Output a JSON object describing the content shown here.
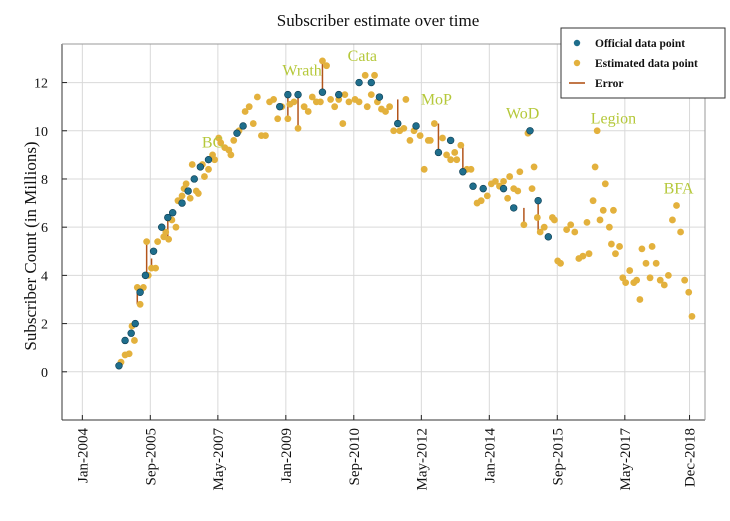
{
  "chart_data": {
    "type": "scatter",
    "title": "Subscriber estimate over time",
    "xlabel": "",
    "ylabel": "Subscriber Count (in Millions)",
    "xlim": [
      2003.5,
      2019.3
    ],
    "ylim": [
      -2,
      13.6
    ],
    "y_ticks": [
      0,
      2,
      4,
      6,
      8,
      10,
      12
    ],
    "x_ticks": [
      {
        "label": "Jan-2004",
        "value": 2004.0
      },
      {
        "label": "Sep-2005",
        "value": 2005.67
      },
      {
        "label": "May-2007",
        "value": 2007.33
      },
      {
        "label": "Jan-2009",
        "value": 2009.0
      },
      {
        "label": "Sep-2010",
        "value": 2010.67
      },
      {
        "label": "May-2012",
        "value": 2012.33
      },
      {
        "label": "Jan-2014",
        "value": 2014.0
      },
      {
        "label": "Sep-2015",
        "value": 2015.67
      },
      {
        "label": "May-2017",
        "value": 2017.33
      },
      {
        "label": "Dec-2018",
        "value": 2018.92
      }
    ],
    "grid": true,
    "legend": {
      "position": "top-right",
      "entries": [
        {
          "label": "Official data point",
          "kind": "marker",
          "color": "#1f6e8c"
        },
        {
          "label": "Estimated data point",
          "kind": "marker",
          "color": "#e3b13d"
        },
        {
          "label": "Error",
          "kind": "line",
          "color": "#b3551b"
        }
      ]
    },
    "annotations": [
      {
        "text": "BC",
        "x": 2007.2,
        "y": 9.3
      },
      {
        "text": "Wrath",
        "x": 2009.4,
        "y": 12.3
      },
      {
        "text": "Cata",
        "x": 2010.88,
        "y": 12.9
      },
      {
        "text": "MoP",
        "x": 2012.7,
        "y": 11.1
      },
      {
        "text": "WoD",
        "x": 2014.82,
        "y": 10.5
      },
      {
        "text": "Legion",
        "x": 2017.05,
        "y": 10.3
      },
      {
        "text": "BFA",
        "x": 2018.65,
        "y": 7.4
      }
    ],
    "series": [
      {
        "name": "Official data point",
        "color": "#1f6e8c",
        "points": [
          [
            2004.9,
            0.25
          ],
          [
            2005.05,
            1.3
          ],
          [
            2005.2,
            1.6
          ],
          [
            2005.3,
            2.0
          ],
          [
            2005.42,
            3.3
          ],
          [
            2005.55,
            4.0
          ],
          [
            2005.75,
            5.0
          ],
          [
            2005.95,
            6.0
          ],
          [
            2006.1,
            6.4
          ],
          [
            2006.22,
            6.6
          ],
          [
            2006.45,
            7.0
          ],
          [
            2006.6,
            7.5
          ],
          [
            2006.75,
            8.0
          ],
          [
            2006.9,
            8.5
          ],
          [
            2007.1,
            8.8
          ],
          [
            2007.8,
            9.9
          ],
          [
            2007.95,
            10.2
          ],
          [
            2008.85,
            11.0
          ],
          [
            2009.05,
            11.5
          ],
          [
            2009.3,
            11.5
          ],
          [
            2009.9,
            11.6
          ],
          [
            2010.3,
            11.5
          ],
          [
            2010.8,
            12.0
          ],
          [
            2011.1,
            12.0
          ],
          [
            2011.3,
            11.4
          ],
          [
            2011.75,
            10.3
          ],
          [
            2012.2,
            10.2
          ],
          [
            2012.75,
            9.1
          ],
          [
            2013.05,
            9.6
          ],
          [
            2013.35,
            8.3
          ],
          [
            2013.6,
            7.7
          ],
          [
            2013.85,
            7.6
          ],
          [
            2014.35,
            7.6
          ],
          [
            2014.6,
            6.8
          ],
          [
            2015.0,
            10.0
          ],
          [
            2015.2,
            7.1
          ],
          [
            2015.45,
            5.6
          ]
        ]
      },
      {
        "name": "Estimated data point",
        "color": "#e3b13d",
        "points": [
          [
            2004.95,
            0.4
          ],
          [
            2005.05,
            0.7
          ],
          [
            2005.15,
            0.75
          ],
          [
            2005.22,
            1.9
          ],
          [
            2005.28,
            1.3
          ],
          [
            2005.35,
            3.5
          ],
          [
            2005.42,
            2.8
          ],
          [
            2005.5,
            3.5
          ],
          [
            2005.58,
            5.4
          ],
          [
            2005.62,
            4.0
          ],
          [
            2005.7,
            4.3
          ],
          [
            2005.8,
            4.3
          ],
          [
            2005.85,
            5.4
          ],
          [
            2006.0,
            5.6
          ],
          [
            2006.05,
            5.8
          ],
          [
            2006.12,
            5.5
          ],
          [
            2006.2,
            6.3
          ],
          [
            2006.3,
            6.0
          ],
          [
            2006.35,
            7.1
          ],
          [
            2006.45,
            7.3
          ],
          [
            2006.5,
            7.6
          ],
          [
            2006.55,
            7.8
          ],
          [
            2006.65,
            7.2
          ],
          [
            2006.7,
            8.6
          ],
          [
            2006.8,
            7.5
          ],
          [
            2006.85,
            7.4
          ],
          [
            2006.95,
            8.6
          ],
          [
            2007.0,
            8.1
          ],
          [
            2007.1,
            8.4
          ],
          [
            2007.2,
            9.0
          ],
          [
            2007.25,
            8.8
          ],
          [
            2007.35,
            9.7
          ],
          [
            2007.4,
            9.5
          ],
          [
            2007.5,
            9.3
          ],
          [
            2007.6,
            9.2
          ],
          [
            2007.65,
            9.0
          ],
          [
            2007.72,
            9.6
          ],
          [
            2007.85,
            10.0
          ],
          [
            2008.0,
            10.8
          ],
          [
            2008.1,
            11.0
          ],
          [
            2008.2,
            10.3
          ],
          [
            2008.3,
            11.4
          ],
          [
            2008.4,
            9.8
          ],
          [
            2008.5,
            9.8
          ],
          [
            2008.6,
            11.2
          ],
          [
            2008.7,
            11.3
          ],
          [
            2008.8,
            10.5
          ],
          [
            2008.9,
            11.0
          ],
          [
            2009.05,
            10.5
          ],
          [
            2009.1,
            11.1
          ],
          [
            2009.2,
            11.2
          ],
          [
            2009.3,
            10.1
          ],
          [
            2009.45,
            11.0
          ],
          [
            2009.55,
            10.8
          ],
          [
            2009.65,
            11.4
          ],
          [
            2009.75,
            11.2
          ],
          [
            2009.85,
            11.2
          ],
          [
            2009.9,
            12.9
          ],
          [
            2010.0,
            12.7
          ],
          [
            2010.1,
            11.3
          ],
          [
            2010.2,
            11.0
          ],
          [
            2010.3,
            11.3
          ],
          [
            2010.4,
            10.3
          ],
          [
            2010.45,
            11.5
          ],
          [
            2010.55,
            11.2
          ],
          [
            2010.7,
            11.3
          ],
          [
            2010.8,
            11.2
          ],
          [
            2010.95,
            12.3
          ],
          [
            2011.0,
            11.0
          ],
          [
            2011.1,
            11.5
          ],
          [
            2011.18,
            12.3
          ],
          [
            2011.25,
            11.2
          ],
          [
            2011.35,
            10.9
          ],
          [
            2011.45,
            10.8
          ],
          [
            2011.55,
            11.0
          ],
          [
            2011.65,
            10.0
          ],
          [
            2011.8,
            10.0
          ],
          [
            2011.9,
            10.1
          ],
          [
            2011.95,
            11.3
          ],
          [
            2012.05,
            9.6
          ],
          [
            2012.15,
            10.0
          ],
          [
            2012.3,
            9.8
          ],
          [
            2012.4,
            8.4
          ],
          [
            2012.5,
            9.6
          ],
          [
            2012.55,
            9.6
          ],
          [
            2012.65,
            10.3
          ],
          [
            2012.85,
            9.7
          ],
          [
            2012.95,
            9.0
          ],
          [
            2013.05,
            8.8
          ],
          [
            2013.15,
            9.1
          ],
          [
            2013.2,
            8.8
          ],
          [
            2013.3,
            9.4
          ],
          [
            2013.45,
            8.4
          ],
          [
            2013.55,
            8.4
          ],
          [
            2013.7,
            7.0
          ],
          [
            2013.8,
            7.1
          ],
          [
            2013.95,
            7.3
          ],
          [
            2014.05,
            7.8
          ],
          [
            2014.15,
            7.9
          ],
          [
            2014.25,
            7.7
          ],
          [
            2014.35,
            7.9
          ],
          [
            2014.45,
            7.2
          ],
          [
            2014.5,
            8.1
          ],
          [
            2014.6,
            7.6
          ],
          [
            2014.7,
            7.5
          ],
          [
            2014.75,
            8.3
          ],
          [
            2014.85,
            6.1
          ],
          [
            2014.95,
            9.9
          ],
          [
            2015.05,
            7.6
          ],
          [
            2015.1,
            8.5
          ],
          [
            2015.18,
            6.4
          ],
          [
            2015.25,
            5.8
          ],
          [
            2015.35,
            6.0
          ],
          [
            2015.55,
            6.4
          ],
          [
            2015.6,
            6.3
          ],
          [
            2015.68,
            4.6
          ],
          [
            2015.75,
            4.5
          ],
          [
            2015.9,
            5.9
          ],
          [
            2016.0,
            6.1
          ],
          [
            2016.1,
            5.8
          ],
          [
            2016.2,
            4.7
          ],
          [
            2016.3,
            4.8
          ],
          [
            2016.4,
            6.2
          ],
          [
            2016.45,
            4.9
          ],
          [
            2016.55,
            7.1
          ],
          [
            2016.6,
            8.5
          ],
          [
            2016.65,
            10.0
          ],
          [
            2016.72,
            6.3
          ],
          [
            2016.8,
            6.7
          ],
          [
            2016.85,
            7.8
          ],
          [
            2016.95,
            6.0
          ],
          [
            2017.0,
            5.3
          ],
          [
            2017.05,
            6.7
          ],
          [
            2017.1,
            4.9
          ],
          [
            2017.2,
            5.2
          ],
          [
            2017.28,
            3.9
          ],
          [
            2017.35,
            3.7
          ],
          [
            2017.45,
            4.2
          ],
          [
            2017.55,
            3.7
          ],
          [
            2017.62,
            3.8
          ],
          [
            2017.7,
            3.0
          ],
          [
            2017.75,
            5.1
          ],
          [
            2017.85,
            4.5
          ],
          [
            2017.95,
            3.9
          ],
          [
            2018.0,
            5.2
          ],
          [
            2018.1,
            4.5
          ],
          [
            2018.2,
            3.8
          ],
          [
            2018.3,
            3.6
          ],
          [
            2018.4,
            4.0
          ],
          [
            2018.5,
            6.3
          ],
          [
            2018.6,
            6.9
          ],
          [
            2018.7,
            5.8
          ],
          [
            2018.8,
            3.8
          ],
          [
            2018.9,
            3.3
          ],
          [
            2018.98,
            2.3
          ]
        ]
      }
    ],
    "error_bars": [
      [
        2005.35,
        3.5,
        2.8
      ],
      [
        2005.58,
        5.4,
        4.0
      ],
      [
        2005.7,
        4.3,
        4.7
      ],
      [
        2006.1,
        6.4,
        5.5
      ],
      [
        2009.05,
        11.5,
        10.5
      ],
      [
        2009.3,
        11.5,
        10.1
      ],
      [
        2009.9,
        11.6,
        12.9
      ],
      [
        2011.75,
        10.3,
        11.3
      ],
      [
        2012.75,
        9.1,
        10.3
      ],
      [
        2013.35,
        8.3,
        9.4
      ],
      [
        2014.85,
        6.8,
        6.1
      ],
      [
        2015.2,
        7.1,
        5.8
      ]
    ]
  }
}
